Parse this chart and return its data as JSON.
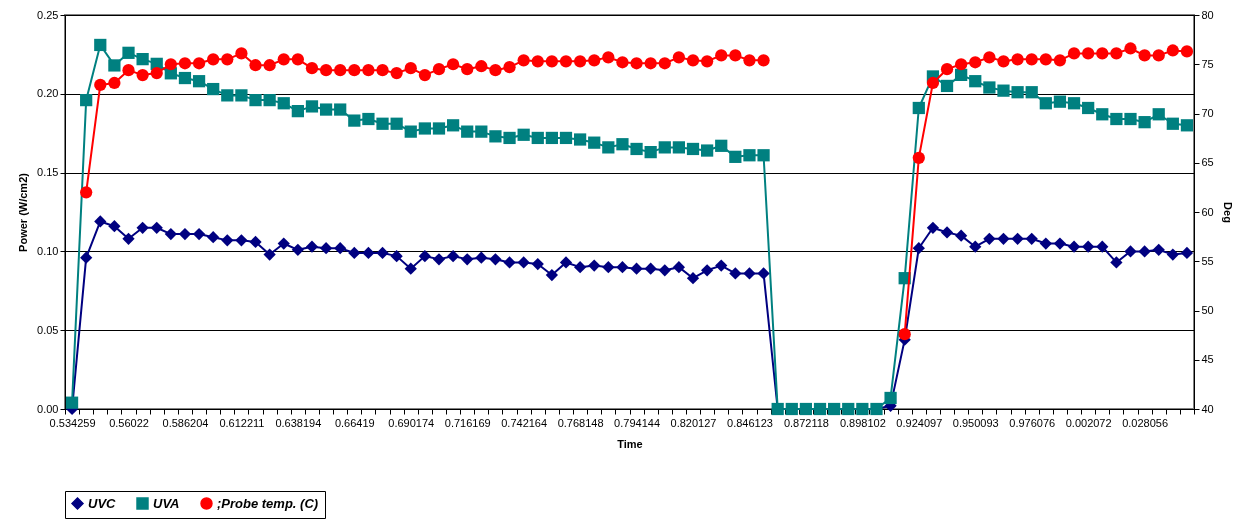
{
  "chart_data": {
    "type": "line",
    "xlabel": "Time",
    "ylabel": "Power (W/cm2)",
    "y2label": "Deg",
    "categories": [
      "0.534259",
      null,
      null,
      null,
      "0.56022",
      null,
      null,
      null,
      "0.586204",
      null,
      null,
      null,
      "0.612211",
      null,
      null,
      null,
      "0.638194",
      null,
      null,
      null,
      "0.66419",
      null,
      null,
      null,
      "0.690174",
      null,
      null,
      null,
      "0.716169",
      null,
      null,
      null,
      "0.742164",
      null,
      null,
      null,
      "0.768148",
      null,
      null,
      null,
      "0.794144",
      null,
      null,
      null,
      "0.820127",
      null,
      null,
      null,
      "0.846123",
      null,
      null,
      null,
      "0.872118",
      null,
      null,
      null,
      "0.898102",
      null,
      null,
      null,
      "0.924097",
      null,
      null,
      null,
      "0.950093",
      null,
      null,
      null,
      "0.976076",
      null,
      null,
      null,
      "0.002072",
      null,
      null,
      null,
      "0.028056",
      null,
      null,
      null
    ],
    "ylim": [
      0,
      0.25
    ],
    "yticks": [
      {
        "value": 0,
        "label": "0.00"
      },
      {
        "value": 0.05,
        "label": "0.05"
      },
      {
        "value": 0.1,
        "label": "0.10"
      },
      {
        "value": 0.15,
        "label": "0.15"
      },
      {
        "value": 0.2,
        "label": "0.20"
      },
      {
        "value": 0.25,
        "label": "0.25"
      }
    ],
    "y2lim": [
      40,
      80
    ],
    "y2ticks": [
      40,
      45,
      50,
      55,
      60,
      65,
      70,
      75,
      80
    ],
    "grid": "y",
    "legend": "bottom",
    "series": [
      {
        "name": "UVC",
        "color": "#000080",
        "marker": "diamond",
        "values": [
          0,
          0.096,
          0.119,
          0.116,
          0.108,
          0.115,
          0.115,
          0.111,
          0.111,
          0.111,
          0.109,
          0.107,
          0.107,
          0.106,
          0.098,
          0.105,
          0.101,
          0.103,
          0.102,
          0.102,
          0.099,
          0.099,
          0.099,
          0.097,
          0.089,
          0.097,
          0.095,
          0.097,
          0.095,
          0.096,
          0.095,
          0.093,
          0.093,
          0.092,
          0.085,
          0.093,
          0.09,
          0.091,
          0.09,
          0.09,
          0.089,
          0.089,
          0.088,
          0.09,
          0.083,
          0.088,
          0.091,
          0.086,
          0.086,
          0.086,
          0,
          0,
          0,
          0,
          0,
          0,
          0,
          0,
          0.002,
          0.044,
          0.102,
          0.115,
          0.112,
          0.11,
          0.103,
          0.108,
          0.108,
          0.108,
          0.108,
          0.105,
          0.105,
          0.103,
          0.103,
          0.103,
          0.093,
          0.1,
          0.1,
          0.101,
          0.098,
          0.099
        ]
      },
      {
        "name": "UVA",
        "color": "#008080",
        "marker": "square",
        "values": [
          0.004,
          0.196,
          0.231,
          0.218,
          0.226,
          0.222,
          0.219,
          0.213,
          0.21,
          0.208,
          0.203,
          0.199,
          0.199,
          0.196,
          0.196,
          0.194,
          0.189,
          0.192,
          0.19,
          0.19,
          0.183,
          0.184,
          0.181,
          0.181,
          0.176,
          0.178,
          0.178,
          0.18,
          0.176,
          0.176,
          0.173,
          0.172,
          0.174,
          0.172,
          0.172,
          0.172,
          0.171,
          0.169,
          0.166,
          0.168,
          0.165,
          0.163,
          0.166,
          0.166,
          0.165,
          0.164,
          0.167,
          0.16,
          0.161,
          0.161,
          0,
          0,
          0,
          0,
          0,
          0,
          0,
          0,
          0.007,
          0.083,
          0.191,
          0.211,
          0.205,
          0.212,
          0.208,
          0.204,
          0.202,
          0.201,
          0.201,
          0.194,
          0.195,
          0.194,
          0.191,
          0.187,
          0.184,
          0.184,
          0.182,
          0.187,
          0.181,
          0.18
        ]
      },
      {
        "name": ";Probe temp. (C)",
        "color": "#ff0000",
        "marker": "circle",
        "axis": "y2",
        "values": [
          null,
          62.0,
          72.9,
          73.1,
          74.4,
          73.9,
          74.1,
          75.0,
          75.1,
          75.1,
          75.5,
          75.5,
          76.1,
          74.9,
          74.9,
          75.5,
          75.5,
          74.6,
          74.4,
          74.4,
          74.4,
          74.4,
          74.4,
          74.1,
          74.6,
          73.9,
          74.5,
          75.0,
          74.5,
          74.8,
          74.4,
          74.7,
          75.4,
          75.3,
          75.3,
          75.3,
          75.3,
          75.4,
          75.7,
          75.2,
          75.1,
          75.1,
          75.1,
          75.7,
          75.4,
          75.3,
          75.9,
          75.9,
          75.4,
          75.4,
          null,
          null,
          null,
          null,
          null,
          null,
          null,
          null,
          null,
          47.6,
          65.5,
          73.1,
          74.5,
          75.0,
          75.2,
          75.7,
          75.3,
          75.5,
          75.5,
          75.5,
          75.4,
          76.1,
          76.1,
          76.1,
          76.1,
          76.6,
          75.9,
          75.9,
          76.4,
          76.3
        ]
      }
    ]
  }
}
